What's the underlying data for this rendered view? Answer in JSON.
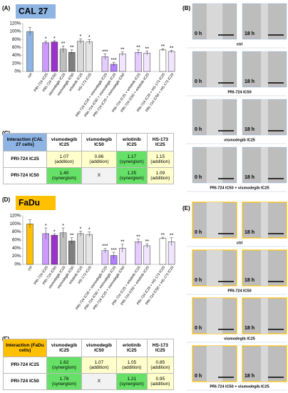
{
  "chart_data": [
    {
      "type": "bar",
      "panel": "(A)",
      "title": "CAL 27",
      "title_color": "#8db4e2",
      "categories": [
        "ctrl",
        "PRI-724 IC25",
        "PRI-724 IC50",
        "vismodegib IC25",
        "vismodegib IC50",
        "erlotinib IC25",
        "HS-173 IC25",
        "PRI-724 IC25 + vismodegib IC25",
        "PRI-724 IC50 + vismodegib IC25",
        "PRI-724 IC25 + vismodegib IC50",
        "PRI-724 IC25 + erlotinib IC25",
        "PRI-724 IC50 + erlotinib IC25",
        "PRI-724 IC25 + HS-173 IC25",
        "PRI-724 IC50 + HS-173 IC25"
      ],
      "values": [
        100,
        72,
        74,
        56,
        48,
        76,
        74,
        37,
        18,
        44,
        48,
        46,
        54,
        50
      ],
      "errors": [
        10,
        4,
        3,
        8,
        6,
        6,
        6,
        7,
        5,
        5,
        6,
        5,
        3,
        3
      ],
      "significance": [
        null,
        "*",
        "*",
        "**",
        "**",
        "*",
        "*",
        "***",
        "***",
        "**",
        "**",
        "**",
        "**",
        "**"
      ],
      "colors": [
        "#8db4e2",
        "#cc99ff",
        "#9933cc",
        "#bfbfbf",
        "#7f7f7f",
        "#d9d9d9",
        "#e6e6e6",
        "#e5ccff",
        "#b380ff",
        "#f2e6ff",
        "#e5ccff",
        "#f2e6ff",
        "#ffffff",
        "#f2e6ff"
      ],
      "ylim": [
        0,
        120
      ],
      "yticks": [
        {
          "value": 0,
          "label": "0%"
        },
        {
          "value": 20,
          "label": "20%"
        },
        {
          "value": 40,
          "label": "40%"
        },
        {
          "value": 60,
          "label": "60%"
        },
        {
          "value": 80,
          "label": "80%"
        },
        {
          "value": 100,
          "label": "100%"
        },
        {
          "value": 120,
          "label": "120%"
        }
      ],
      "grid": false
    },
    {
      "type": "bar",
      "panel": "(D)",
      "title": "FaDu",
      "title_color": "#ffc000",
      "categories": [
        "ctrl",
        "PRI-724 IC25",
        "PRI-724 IC50",
        "vismodegib IC25",
        "vismodegib IC50",
        "erlotinib IC25",
        "HS-173 IC25",
        "PRI-724 IC25 + vismodegib IC25",
        "PRI-724 IC50 + vismodegib IC25",
        "PRI-724 IC25 + vismodegib IC50",
        "PRI-724 IC25 + erlotinib IC25",
        "PRI-724 IC50 + erlotinib IC25",
        "PRI-724 IC25 + HS-173 IC25",
        "PRI-724 IC50 + HS-173 IC25"
      ],
      "values": [
        100,
        76,
        72,
        78,
        58,
        76,
        74,
        34,
        22,
        40,
        56,
        46,
        64,
        56
      ],
      "errors": [
        10,
        14,
        3,
        12,
        8,
        6,
        6,
        5,
        8,
        10,
        6,
        5,
        3,
        10
      ],
      "significance": [
        null,
        "*",
        "*",
        "*",
        "**",
        "*",
        "*",
        "***",
        "***",
        "**",
        "**",
        "**",
        "**",
        "**"
      ],
      "colors": [
        "#ffc000",
        "#cc99ff",
        "#9933cc",
        "#bfbfbf",
        "#7f7f7f",
        "#d9d9d9",
        "#e6e6e6",
        "#e5ccff",
        "#b380ff",
        "#f2e6ff",
        "#e5ccff",
        "#f2e6ff",
        "#ffffff",
        "#f2e6ff"
      ],
      "ylim": [
        0,
        120
      ],
      "yticks": [
        {
          "value": 0,
          "label": "0%"
        },
        {
          "value": 20,
          "label": "20%"
        },
        {
          "value": 40,
          "label": "40%"
        },
        {
          "value": 60,
          "label": "60%"
        },
        {
          "value": 80,
          "label": "80%"
        },
        {
          "value": 100,
          "label": "100%"
        },
        {
          "value": 120,
          "label": "120%"
        }
      ],
      "grid": false
    }
  ],
  "tables": [
    {
      "panel": "(C)",
      "header": [
        "Interaction (CAL 27 cells)",
        "vismodegib IC25",
        "vismodegib IC50",
        "erlotinib IC25",
        "HS-173 IC25"
      ],
      "header_color": "#8db4e2",
      "rows": [
        {
          "label": "PRI-724 IC25",
          "cells": [
            {
              "value": "1.07",
              "effect": "(addition)",
              "color": "#ffffcc"
            },
            {
              "value": "0.86",
              "effect": "(addition)",
              "color": "#ffffcc"
            },
            {
              "value": "1.17",
              "effect": "(synergism)",
              "color": "#66e066"
            },
            {
              "value": "1.15",
              "effect": "(addition)",
              "color": "#ffffcc"
            }
          ]
        },
        {
          "label": "PRI-724 IC50",
          "cells": [
            {
              "value": "1.40",
              "effect": "(synergism)",
              "color": "#66e066"
            },
            {
              "value": "X",
              "color": "#f2f2f2"
            },
            {
              "value": "1.25",
              "effect": "(synergism)",
              "color": "#66e066"
            },
            {
              "value": "1.09",
              "effect": "(addition)",
              "color": "#ffffcc"
            }
          ]
        }
      ]
    },
    {
      "panel": "(F)",
      "header": [
        "Interaction (FaDu cells)",
        "vismodegib IC25",
        "vismodegib IC50",
        "erlotinib IC25",
        "HS-173 IC25"
      ],
      "header_color": "#ffc000",
      "rows": [
        {
          "label": "PRI-724 IC25",
          "cells": [
            {
              "value": "1.62",
              "effect": "(synergism)",
              "color": "#66e066"
            },
            {
              "value": "1.07",
              "effect": "(addition)",
              "color": "#ffffcc"
            },
            {
              "value": "1.05",
              "effect": "(addition)",
              "color": "#ffffcc"
            },
            {
              "value": "0.85",
              "effect": "(addition)",
              "color": "#ffffcc"
            }
          ]
        },
        {
          "label": "PRI-724 IC50",
          "cells": [
            {
              "value": "1.78",
              "effect": "(synergism)",
              "color": "#66e066"
            },
            {
              "value": "X",
              "color": "#f2f2f2"
            },
            {
              "value": "1.21",
              "effect": "(synergism)",
              "color": "#66e066"
            },
            {
              "value": "0.95",
              "effect": "(addition)",
              "color": "#ffffcc"
            }
          ]
        }
      ]
    }
  ],
  "images": [
    {
      "panel": "(B)",
      "border": "#8db4e2",
      "rows": [
        {
          "caption": "ctrl",
          "labels": [
            "0 h",
            "18 h"
          ]
        },
        {
          "caption": "PRI-724 IC50",
          "labels": [
            "0 h",
            "18 h"
          ]
        },
        {
          "caption": "vismodegib IC25",
          "labels": [
            "0 h",
            "18 h"
          ]
        },
        {
          "caption": "PRI-724 IC50 + vismodegib IC25",
          "labels": [
            "0 h",
            "18 h"
          ]
        }
      ]
    },
    {
      "panel": "(E)",
      "border": "#ffc000",
      "rows": [
        {
          "caption": "ctrl",
          "labels": [
            "0 h",
            "18 h"
          ]
        },
        {
          "caption": "PRI-724 IC50",
          "labels": [
            "0 h",
            "18 h"
          ]
        },
        {
          "caption": "vismodegib IC25",
          "labels": [
            "0 h",
            "18 h"
          ]
        },
        {
          "caption": "PRI-724 IC50 + vismodegib IC25",
          "labels": [
            "0 h",
            "18 h"
          ]
        }
      ]
    }
  ]
}
